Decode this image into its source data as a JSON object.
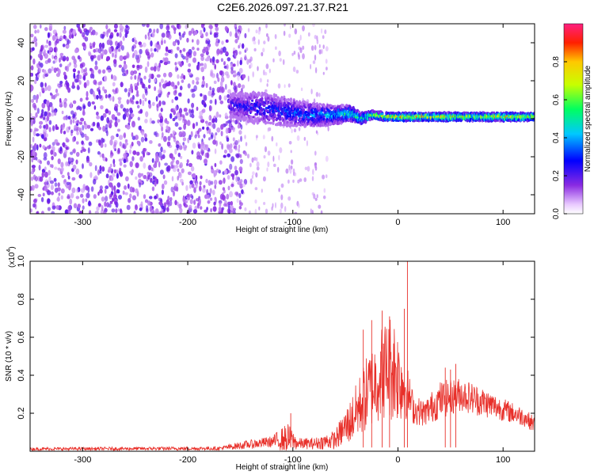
{
  "title": "C2E6.2026.097.21.37.R21",
  "chart_data": [
    {
      "type": "heatmap",
      "name": "spectrogram",
      "xlabel": "Height of straight line (km)",
      "ylabel": "Frequency (Hz)",
      "xlim": [
        -350,
        130
      ],
      "ylim": [
        -50,
        50
      ],
      "xticks": [
        -300,
        -200,
        -100,
        0,
        100
      ],
      "yticks": [
        -40,
        -20,
        0,
        20,
        40
      ],
      "noise_region_end_km": -155,
      "signal_track": {
        "x": [
          -160,
          -140,
          -120,
          -100,
          -80,
          -60,
          -45,
          -35,
          -25,
          -10,
          0,
          20,
          60,
          100,
          128
        ],
        "center_hz": [
          7,
          6,
          5,
          3,
          2,
          2,
          3,
          0,
          2,
          1,
          1,
          1,
          1,
          1,
          1
        ],
        "halfwidth_hz": [
          6,
          8,
          8,
          7,
          6,
          5,
          4,
          3,
          2,
          2,
          2,
          2,
          2,
          2,
          2
        ],
        "peak_amplitude": [
          0.25,
          0.3,
          0.3,
          0.35,
          0.4,
          0.45,
          0.55,
          0.6,
          0.7,
          0.8,
          0.9,
          0.85,
          0.8,
          0.8,
          0.8
        ]
      },
      "colorbar": {
        "label": "Normalized spectral amplitude",
        "range": [
          0,
          1
        ],
        "ticks": [
          "0.0",
          "0.2",
          "0.4",
          "0.6",
          "0.8"
        ],
        "tick_values": [
          0,
          0.2,
          0.4,
          0.6,
          0.8
        ]
      }
    },
    {
      "type": "line",
      "name": "snr",
      "xlabel": "Height of straight line (km)",
      "ylabel": "SNR (10 * v/v)",
      "multiplier_label": "(x10",
      "multiplier_exp": "4",
      "multiplier_close": ")",
      "xlim": [
        -350,
        130
      ],
      "ylim": [
        0,
        1.0
      ],
      "xticks": [
        -300,
        -200,
        -100,
        0,
        100
      ],
      "yticks": [
        "0.2",
        "0.4",
        "0.6",
        "0.8",
        "1.0"
      ],
      "ytick_values": [
        0.2,
        0.4,
        0.6,
        0.8,
        1.0
      ],
      "color": "#e8302a",
      "envelope": {
        "x": [
          -350,
          -170,
          -150,
          -120,
          -105,
          -95,
          -80,
          -60,
          -45,
          -30,
          -15,
          -5,
          5,
          10,
          15,
          25,
          40,
          60,
          80,
          100,
          120,
          130
        ],
        "mean": [
          0.012,
          0.015,
          0.03,
          0.05,
          0.07,
          0.04,
          0.04,
          0.06,
          0.16,
          0.3,
          0.42,
          0.45,
          0.35,
          0.3,
          0.22,
          0.2,
          0.27,
          0.3,
          0.26,
          0.22,
          0.18,
          0.14
        ],
        "amp": [
          0.008,
          0.01,
          0.02,
          0.03,
          0.08,
          0.03,
          0.03,
          0.05,
          0.12,
          0.2,
          0.25,
          0.3,
          0.2,
          0.12,
          0.08,
          0.07,
          0.1,
          0.09,
          0.08,
          0.06,
          0.05,
          0.04
        ]
      },
      "peaks": [
        {
          "x": -102,
          "y": 0.2
        },
        {
          "x": -33,
          "y": 0.64
        },
        {
          "x": -25,
          "y": 0.69
        },
        {
          "x": -15,
          "y": 0.74
        },
        {
          "x": -8,
          "y": 0.71
        },
        {
          "x": 6,
          "y": 0.75
        },
        {
          "x": 9,
          "y": 1.0
        },
        {
          "x": 45,
          "y": 0.44
        },
        {
          "x": 50,
          "y": 0.43
        },
        {
          "x": 55,
          "y": 0.46
        }
      ]
    }
  ]
}
